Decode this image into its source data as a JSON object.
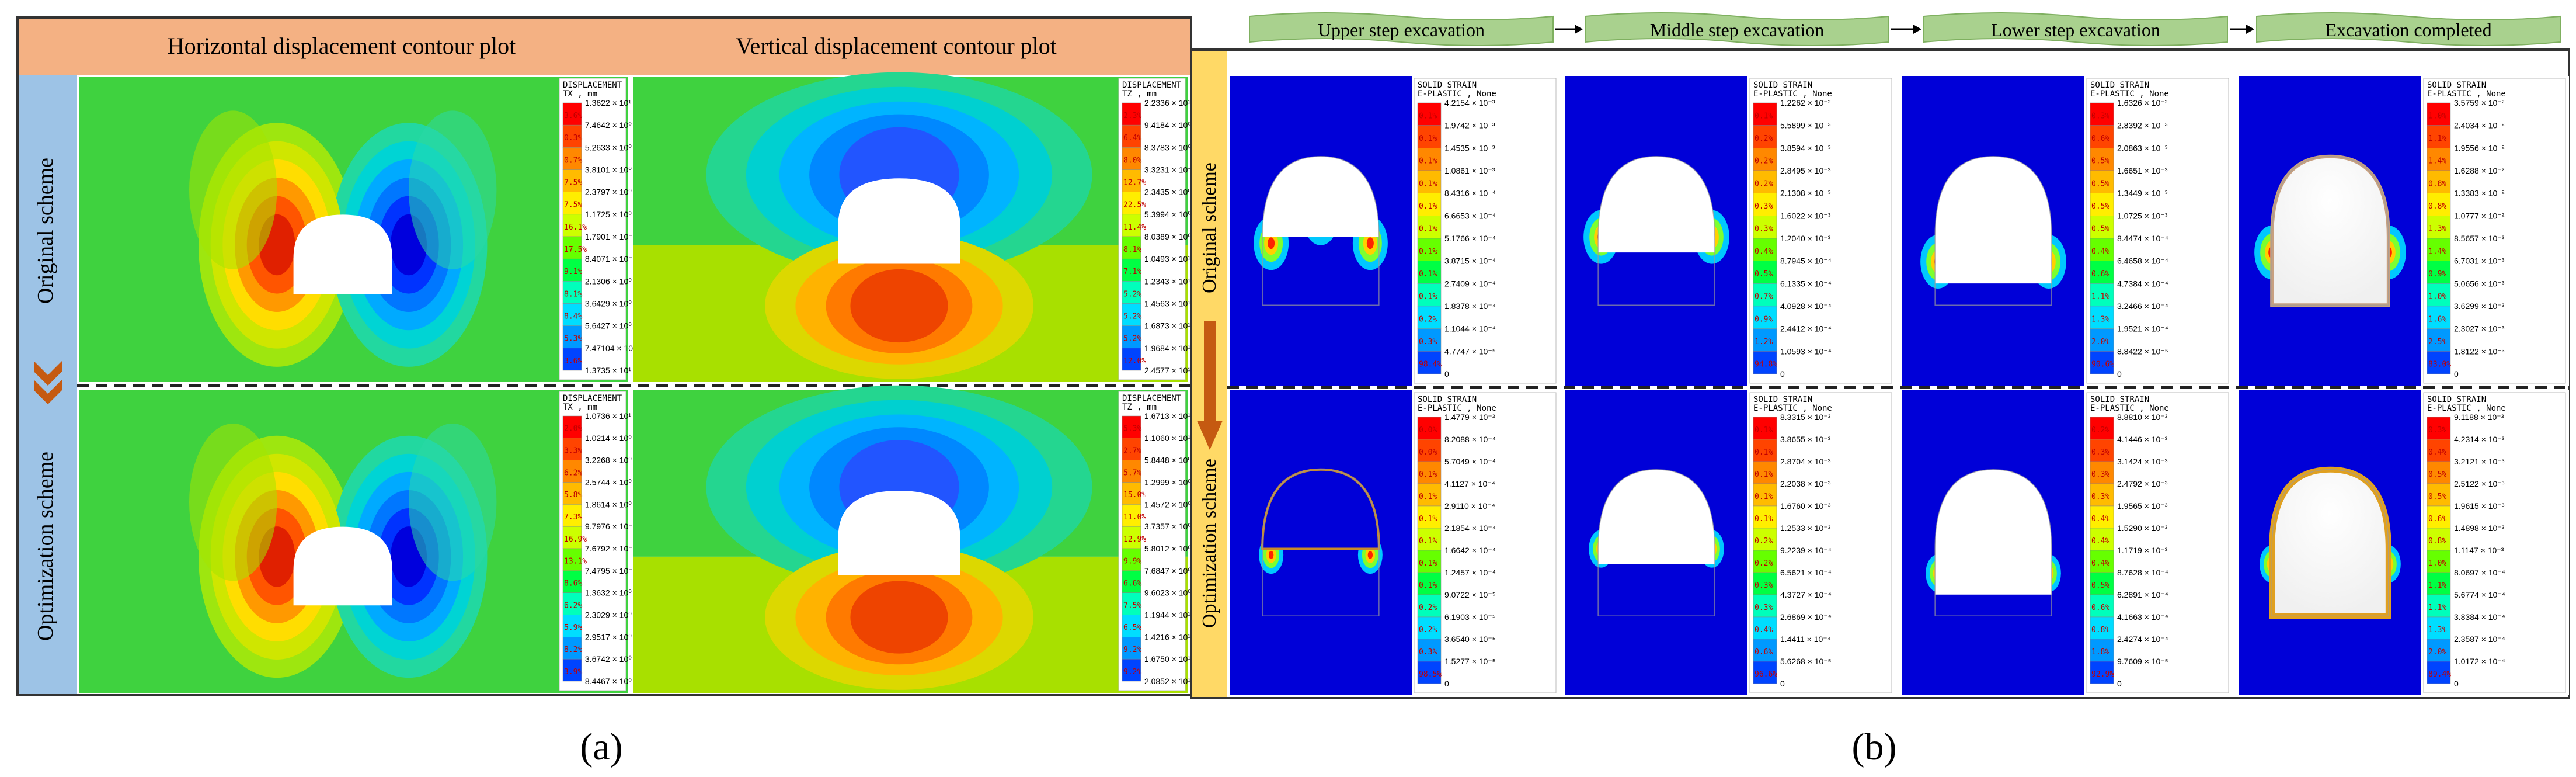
{
  "panel_a": {
    "label": "(a)",
    "headers": [
      "Horizontal displacement contour plot",
      "Vertical displacement contour plot"
    ],
    "row_labels": [
      "Original scheme",
      "Optimization scheme"
    ],
    "legends": [
      {
        "title": [
          "DISPLACEMENT",
          "TX , mm"
        ],
        "values": [
          "1.3622 × 10¹",
          "7.4642 × 10⁰",
          "5.2633 × 10⁰",
          "3.8101 × 10⁰",
          "2.3797 × 10⁰",
          "1.1725 × 10⁰",
          "1.7901 × 10⁻¹",
          "8.4071 × 10⁻¹",
          "2.1306 × 10⁰",
          "3.6429 × 10⁰",
          "5.6427 × 10⁰",
          "7.47104 × 10⁰",
          "1.3735 × 10¹"
        ],
        "percents": [
          "3.6%",
          "0.3%",
          "0.7%",
          "7.5%",
          "7.5%",
          "16.1%",
          "17.5%",
          "9.1%",
          "8.1%",
          "8.4%",
          "5.3%",
          "3.6%"
        ]
      },
      {
        "title": [
          "DISPLACEMENT",
          "TZ , mm"
        ],
        "values": [
          "2.2336 × 10¹",
          "9.4184 × 10⁰",
          "8.3783 × 10⁰",
          "3.3231 × 10⁻¹",
          "2.3435 × 10⁰",
          "5.3994 × 10⁰",
          "8.0389 × 10⁰",
          "1.0493 × 10¹",
          "1.2343 × 10¹",
          "1.4563 × 10¹",
          "1.6873 × 10¹",
          "1.9684 × 10¹",
          "2.4577 × 10¹"
        ],
        "percents": [
          "2.3%",
          "6.4%",
          "8.0%",
          "12.7%",
          "22.5%",
          "11.4%",
          "8.1%",
          "7.1%",
          "5.2%",
          "5.2%",
          "5.2%",
          "12.0%"
        ]
      },
      {
        "title": [
          "DISPLACEMENT",
          "TX , mm"
        ],
        "values": [
          "1.0736 × 10¹",
          "1.0214 × 10⁰",
          "3.2268 × 10⁰",
          "2.5744 × 10⁰",
          "1.8614 × 10⁰",
          "9.7976 × 10⁻¹",
          "7.6792 × 10⁻¹",
          "7.4795 × 10⁻¹",
          "1.3632 × 10⁰",
          "2.3029 × 10⁰",
          "2.9517 × 10⁰",
          "3.6742 × 10⁰",
          "8.4467 × 10⁰"
        ],
        "percents": [
          "2.0%",
          "3.3%",
          "6.2%",
          "5.8%",
          "7.3%",
          "16.9%",
          "13.1%",
          "8.6%",
          "6.2%",
          "5.9%",
          "8.2%",
          "3.9%"
        ]
      },
      {
        "title": [
          "DISPLACEMENT",
          "TZ , mm"
        ],
        "values": [
          "1.6713 × 10¹",
          "1.1060 × 10¹",
          "5.8448 × 10⁰",
          "1.2999 × 10⁰",
          "1.4572 × 10⁰",
          "3.7357 × 10⁰",
          "5.8012 × 10⁰",
          "7.6847 × 10⁰",
          "9.6023 × 10⁰",
          "1.1944 × 10¹",
          "1.4216 × 10¹",
          "1.6750 × 10¹",
          "2.0852 × 10¹"
        ],
        "percents": [
          "5.3%",
          "2.7%",
          "5.7%",
          "15.0%",
          "11.0%",
          "12.9%",
          "9.9%",
          "6.6%",
          "7.5%",
          "6.5%",
          "9.2%",
          "9.2%"
        ]
      }
    ]
  },
  "panel_b": {
    "label": "(b)",
    "stages": [
      "Upper step excavation",
      "Middle step excavation",
      "Lower step excavation",
      "Excavation completed"
    ],
    "row_labels": [
      "Original scheme",
      "Optimization scheme"
    ],
    "legends": [
      {
        "title": [
          "SOLID STRAIN",
          "E-PLASTIC , None"
        ],
        "values": [
          "4.2154 × 10⁻³",
          "1.9742 × 10⁻³",
          "1.4535 × 10⁻³",
          "1.0861 × 10⁻³",
          "8.4316 × 10⁻⁴",
          "6.6653 × 10⁻⁴",
          "5.1766 × 10⁻⁴",
          "3.8715 × 10⁻⁴",
          "2.7409 × 10⁻⁴",
          "1.8378 × 10⁻⁴",
          "1.1044 × 10⁻⁴",
          "4.7747 × 10⁻⁵",
          "0"
        ],
        "percents": [
          "0.1%",
          "0.1%",
          "0.1%",
          "0.1%",
          "0.1%",
          "0.1%",
          "0.1%",
          "0.1%",
          "0.1%",
          "0.2%",
          "0.3%",
          "98.4%"
        ]
      },
      {
        "title": [
          "SOLID STRAIN",
          "E-PLASTIC , None"
        ],
        "values": [
          "1.2262 × 10⁻²",
          "5.5899 × 10⁻³",
          "3.8594 × 10⁻³",
          "2.8495 × 10⁻³",
          "2.1308 × 10⁻³",
          "1.6022 × 10⁻³",
          "1.2040 × 10⁻³",
          "8.7945 × 10⁻⁴",
          "6.1335 × 10⁻⁴",
          "4.0928 × 10⁻⁴",
          "2.4412 × 10⁻⁴",
          "1.0593 × 10⁻⁴",
          "0"
        ],
        "percents": [
          "0.1%",
          "0.2%",
          "0.2%",
          "0.2%",
          "0.3%",
          "0.3%",
          "0.4%",
          "0.5%",
          "0.7%",
          "0.9%",
          "1.2%",
          "94.8%"
        ]
      },
      {
        "title": [
          "SOLID STRAIN",
          "E-PLASTIC , None"
        ],
        "values": [
          "1.6326 × 10⁻²",
          "2.8392 × 10⁻³",
          "2.0863 × 10⁻³",
          "1.6651 × 10⁻³",
          "1.3449 × 10⁻³",
          "1.0725 × 10⁻³",
          "8.4474 × 10⁻⁴",
          "6.4658 × 10⁻⁴",
          "4.7384 × 10⁻⁴",
          "3.2466 × 10⁻⁴",
          "1.9521 × 10⁻⁴",
          "8.8422 × 10⁻⁵",
          "0"
        ],
        "percents": [
          "0.3%",
          "0.6%",
          "0.5%",
          "0.5%",
          "0.5%",
          "0.5%",
          "0.4%",
          "0.6%",
          "1.1%",
          "1.3%",
          "2.0%",
          "90.6%"
        ]
      },
      {
        "title": [
          "SOLID STRAIN",
          "E-PLASTIC , None"
        ],
        "values": [
          "3.5759 × 10⁻²",
          "2.4034 × 10⁻²",
          "1.9556 × 10⁻²",
          "1.6288 × 10⁻²",
          "1.3383 × 10⁻²",
          "1.0777 × 10⁻²",
          "8.5657 × 10⁻³",
          "6.7031 × 10⁻³",
          "5.0656 × 10⁻³",
          "3.6299 × 10⁻³",
          "2.3027 × 10⁻³",
          "1.8122 × 10⁻³",
          "0"
        ],
        "percents": [
          "1.0%",
          "1.1%",
          "1.4%",
          "0.8%",
          "0.8%",
          "1.3%",
          "1.4%",
          "0.9%",
          "1.0%",
          "1.6%",
          "2.5%",
          "83.0%"
        ]
      },
      {
        "title": [
          "SOLID STRAIN",
          "E-PLASTIC , None"
        ],
        "values": [
          "1.4779 × 10⁻³",
          "8.2088 × 10⁻⁴",
          "5.7049 × 10⁻⁴",
          "4.1127 × 10⁻⁴",
          "2.9110 × 10⁻⁴",
          "2.1854 × 10⁻⁴",
          "1.6642 × 10⁻⁴",
          "1.2457 × 10⁻⁴",
          "9.0722 × 10⁻⁵",
          "6.1903 × 10⁻⁵",
          "3.6540 × 10⁻⁵",
          "1.5277 × 10⁻⁵",
          "0"
        ],
        "percents": [
          "0.0%",
          "0.0%",
          "0.1%",
          "0.1%",
          "0.1%",
          "0.1%",
          "0.1%",
          "0.1%",
          "0.2%",
          "0.2%",
          "0.3%",
          "98.5%"
        ]
      },
      {
        "title": [
          "SOLID STRAIN",
          "E-PLASTIC , None"
        ],
        "values": [
          "8.3315 × 10⁻³",
          "3.8655 × 10⁻³",
          "2.8704 × 10⁻³",
          "2.2038 × 10⁻³",
          "1.6760 × 10⁻³",
          "1.2533 × 10⁻³",
          "9.2239 × 10⁻⁴",
          "6.5621 × 10⁻⁴",
          "4.3727 × 10⁻⁴",
          "2.6869 × 10⁻⁴",
          "1.4411 × 10⁻⁴",
          "5.6268 × 10⁻⁵",
          "0"
        ],
        "percents": [
          "0.1%",
          "0.1%",
          "0.1%",
          "0.1%",
          "0.1%",
          "0.2%",
          "0.2%",
          "0.3%",
          "0.3%",
          "0.4%",
          "0.6%",
          "96.6%"
        ]
      },
      {
        "title": [
          "SOLID STRAIN",
          "E-PLASTIC , None"
        ],
        "values": [
          "8.8810 × 10⁻³",
          "4.1446 × 10⁻³",
          "3.1424 × 10⁻³",
          "2.4792 × 10⁻³",
          "1.9565 × 10⁻³",
          "1.5290 × 10⁻³",
          "1.1719 × 10⁻³",
          "8.7628 × 10⁻⁴",
          "6.2891 × 10⁻⁴",
          "4.1663 × 10⁻⁴",
          "2.4274 × 10⁻⁴",
          "9.7609 × 10⁻⁵",
          "0"
        ],
        "percents": [
          "0.2%",
          "0.3%",
          "0.3%",
          "0.3%",
          "0.4%",
          "0.4%",
          "0.4%",
          "0.5%",
          "0.6%",
          "0.8%",
          "1.8%",
          "92.9%"
        ]
      },
      {
        "title": [
          "SOLID STRAIN",
          "E-PLASTIC , None"
        ],
        "values": [
          "9.1188 × 10⁻³",
          "4.2314 × 10⁻³",
          "3.2121 × 10⁻³",
          "2.5122 × 10⁻³",
          "1.9615 × 10⁻³",
          "1.4898 × 10⁻³",
          "1.1147 × 10⁻³",
          "8.0697 × 10⁻⁴",
          "5.6774 × 10⁻⁴",
          "3.8384 × 10⁻⁴",
          "2.3587 × 10⁻⁴",
          "1.0172 × 10⁻⁴",
          "0"
        ],
        "percents": [
          "0.3%",
          "0.4%",
          "0.5%",
          "0.5%",
          "0.6%",
          "0.8%",
          "1.0%",
          "1.1%",
          "1.1%",
          "1.3%",
          "2.0%",
          "89.4%"
        ]
      }
    ]
  },
  "colors": {
    "header_bg": "#f4b183",
    "side_bar": "#9dc3e6",
    "side_bar_b": "#ffd966",
    "arrow": "#c55a11",
    "ribbon": "#a9d18e",
    "field_green": "#3cd83c",
    "field_blue": "#0000d8",
    "scale": [
      "#ff0000",
      "#ff4400",
      "#ff8800",
      "#ffbb00",
      "#ffee00",
      "#ccff00",
      "#66ff00",
      "#00ff44",
      "#00ffbb",
      "#00ddff",
      "#0099ff",
      "#0044ff",
      "#0000cc"
    ]
  }
}
